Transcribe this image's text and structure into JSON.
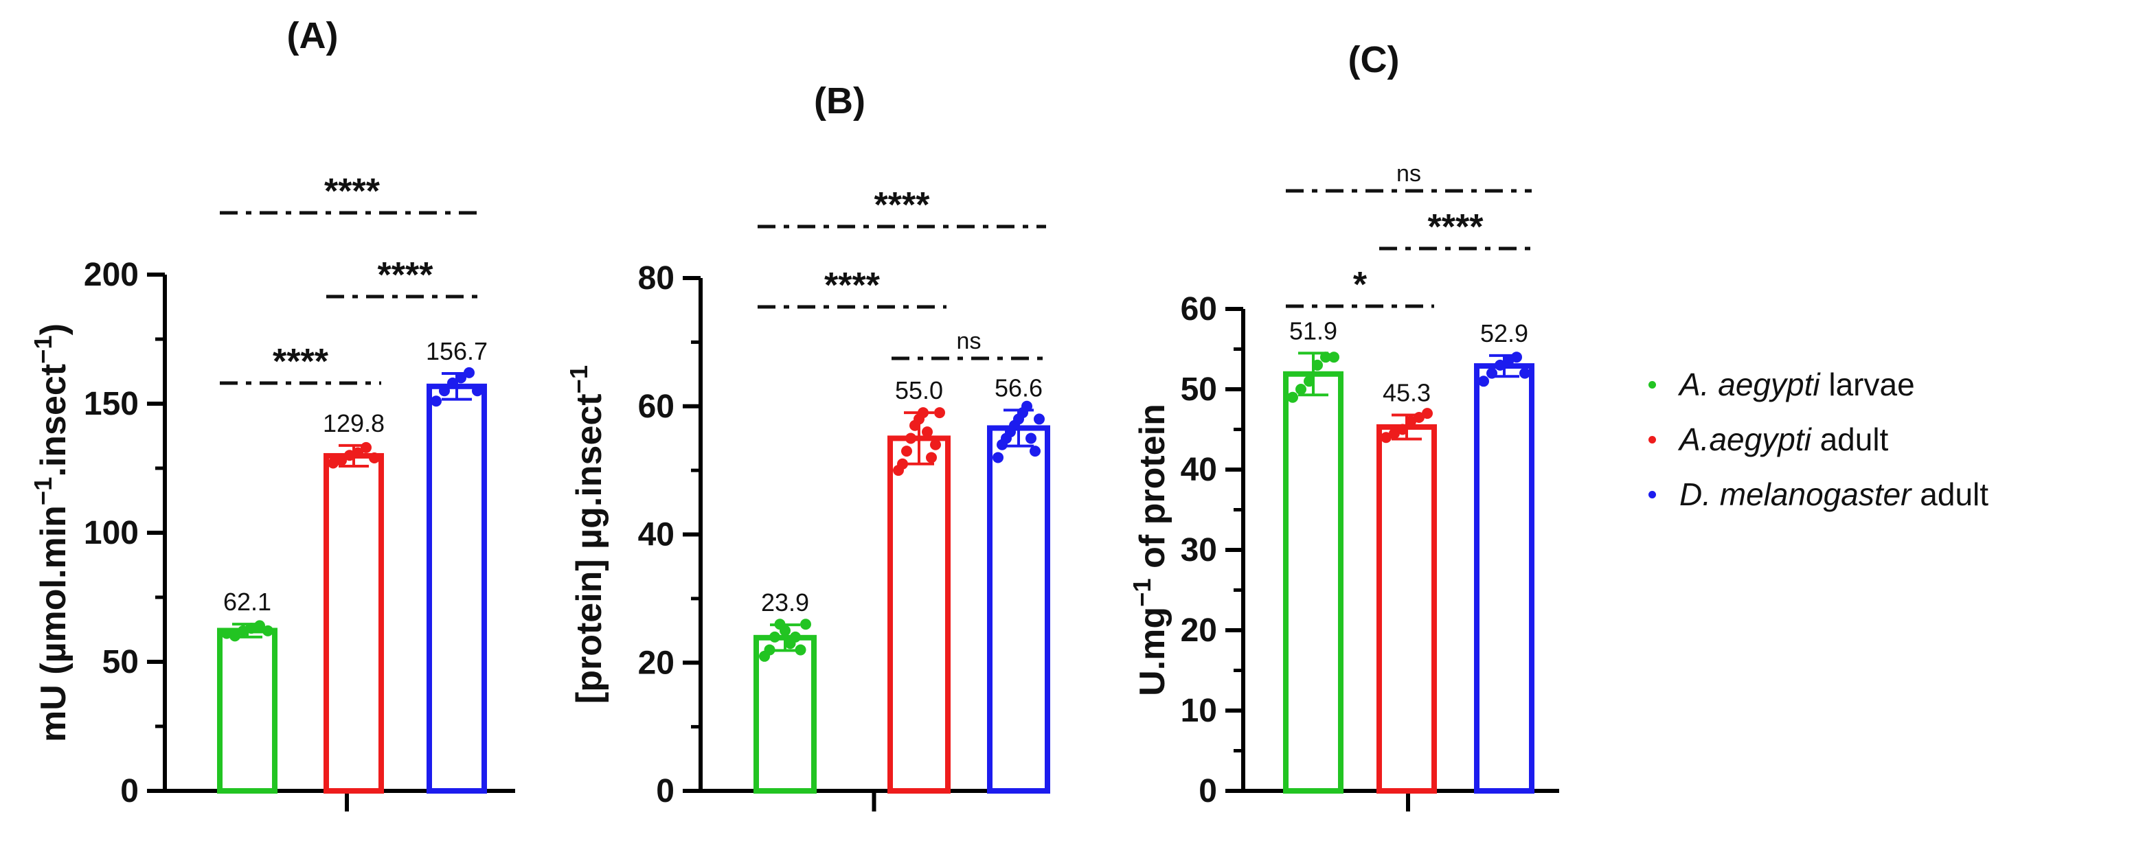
{
  "chart_data": [
    {
      "type": "bar",
      "title": "(A)",
      "ylabel": "mU (µmol.min⁻¹.insect⁻¹)",
      "ylim": [
        0,
        200
      ],
      "yticks": [
        "0",
        "50",
        "100",
        "150",
        "200"
      ],
      "categories": [
        "A. aegypti larvae",
        "A.aegypti adult",
        "D. melanogaster adult"
      ],
      "values": [
        62.1,
        129.8,
        156.7
      ],
      "value_labels": [
        "62.1",
        "129.8",
        "156.7"
      ],
      "errors": [
        2.5,
        4.0,
        5.0
      ],
      "points": [
        [
          61,
          60,
          62,
          63,
          64,
          62
        ],
        [
          127,
          128,
          130,
          131,
          133,
          129
        ],
        [
          151,
          155,
          158,
          160,
          162,
          155
        ]
      ],
      "comparisons": [
        {
          "pair": [
            0,
            2
          ],
          "label": "****",
          "level": 2
        },
        {
          "pair": [
            0,
            1
          ],
          "label": "****",
          "level": 0
        },
        {
          "pair": [
            1,
            2
          ],
          "label": "****",
          "level": 1
        }
      ]
    },
    {
      "type": "bar",
      "title": "(B)",
      "ylabel": "[protein] µg.insect⁻¹",
      "ylim": [
        0,
        80
      ],
      "yticks": [
        "0",
        "20",
        "40",
        "60",
        "80"
      ],
      "categories": [
        "A. aegypti larvae",
        "A.aegypti adult",
        "D. melanogaster adult"
      ],
      "values": [
        23.9,
        55.0,
        56.6
      ],
      "value_labels": [
        "23.9",
        "55.0",
        "56.6"
      ],
      "errors": [
        2.0,
        4.0,
        2.8
      ],
      "points": [
        [
          21,
          22,
          24,
          26,
          25,
          23,
          24,
          22,
          26
        ],
        [
          50,
          51,
          53,
          55,
          57,
          58,
          59,
          56,
          52,
          54,
          59
        ],
        [
          52,
          54,
          55,
          56,
          57,
          58,
          59,
          60,
          55,
          53,
          58
        ]
      ],
      "comparisons": [
        {
          "pair": [
            0,
            2
          ],
          "label": "****",
          "level": 2
        },
        {
          "pair": [
            0,
            1
          ],
          "label": "****",
          "level": 1
        },
        {
          "pair": [
            1,
            2
          ],
          "label": "ns",
          "level": 0
        }
      ]
    },
    {
      "type": "bar",
      "title": "(C)",
      "ylabel": "U.mg⁻¹ of protein",
      "ylim": [
        0,
        60
      ],
      "yticks": [
        "0",
        "10",
        "20",
        "30",
        "40",
        "50",
        "60"
      ],
      "categories": [
        "A. aegypti larvae",
        "A.aegypti adult",
        "D. melanogaster adult"
      ],
      "values": [
        51.9,
        45.3,
        52.9
      ],
      "value_labels": [
        "51.9",
        "45.3",
        "52.9"
      ],
      "errors": [
        2.6,
        1.5,
        1.3
      ],
      "points": [
        [
          49,
          50,
          51,
          53,
          54,
          54
        ],
        [
          44,
          44.5,
          45,
          46,
          46.5,
          47
        ],
        [
          51,
          52,
          53,
          53.5,
          54,
          52
        ]
      ],
      "comparisons": [
        {
          "pair": [
            0,
            2
          ],
          "label": "ns",
          "level": 2
        },
        {
          "pair": [
            0,
            1
          ],
          "label": "*",
          "level": 0
        },
        {
          "pair": [
            1,
            2
          ],
          "label": "****",
          "level": 1
        }
      ]
    }
  ],
  "legend": {
    "items": [
      {
        "italic": "A. aegypti",
        "plain": " larvae",
        "color": "#22c422"
      },
      {
        "italic": "A.aegypti",
        "plain": " adult",
        "color": "#ee1c1c"
      },
      {
        "italic": "D. melanogaster",
        "plain": " adult",
        "color": "#1c1cee"
      }
    ]
  },
  "colors": {
    "axis": "#000000",
    "series": [
      "#22c422",
      "#ee1c1c",
      "#1c1cee"
    ]
  }
}
